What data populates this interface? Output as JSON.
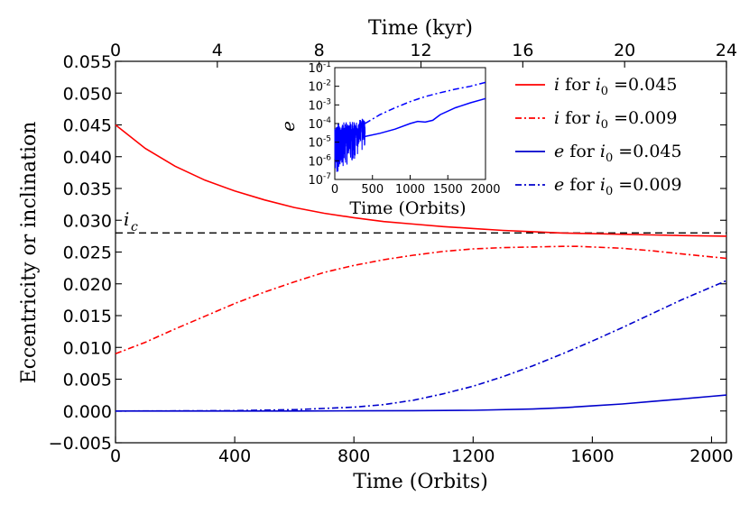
{
  "chart_data": [
    {
      "type": "line",
      "title": "",
      "xlabel": "Time (Orbits)",
      "ylabel": "Eccentricity or inclination",
      "top_axis": {
        "label": "Time (kyr)",
        "range": [
          0,
          24
        ],
        "ticks": [
          "0",
          "4",
          "8",
          "12",
          "16",
          "20",
          "24"
        ]
      },
      "xlim": [
        0,
        2050
      ],
      "ylim": [
        -0.005,
        0.055
      ],
      "xticks": [
        "0",
        "400",
        "800",
        "1200",
        "1600",
        "2000"
      ],
      "yticks": [
        "−0.005",
        "0.000",
        "0.005",
        "0.010",
        "0.015",
        "0.020",
        "0.025",
        "0.030",
        "0.035",
        "0.040",
        "0.045",
        "0.050",
        "0.055"
      ],
      "legend_position": "top-right",
      "reference_line": {
        "label": "i",
        "subscript": "c",
        "y": 0.028,
        "style": "dashed",
        "color": "#000000"
      },
      "series": [
        {
          "name": "i for i0 = 0.045",
          "legend_var": "i",
          "legend_mid": " for ",
          "legend_sub_var": "i",
          "legend_sub": "0",
          "legend_val": " =0.045",
          "color": "#ff0000",
          "style": "solid",
          "x": [
            0,
            100,
            200,
            300,
            400,
            500,
            600,
            700,
            800,
            900,
            1000,
            1100,
            1200,
            1300,
            1400,
            1500,
            1600,
            1700,
            1800,
            1900,
            2050
          ],
          "y": [
            0.045,
            0.0413,
            0.0385,
            0.0363,
            0.0346,
            0.0332,
            0.032,
            0.0311,
            0.0304,
            0.0298,
            0.0294,
            0.029,
            0.0287,
            0.0284,
            0.0282,
            0.028,
            0.0279,
            0.0278,
            0.0277,
            0.0276,
            0.0275
          ]
        },
        {
          "name": "i for i0 = 0.009",
          "legend_var": "i",
          "legend_mid": " for ",
          "legend_sub_var": "i",
          "legend_sub": "0",
          "legend_val": " =0.009",
          "color": "#ff0000",
          "style": "dashdot",
          "x": [
            0,
            100,
            200,
            300,
            400,
            500,
            600,
            700,
            800,
            900,
            1000,
            1100,
            1200,
            1300,
            1400,
            1500,
            1550,
            1600,
            1700,
            1800,
            1900,
            2050
          ],
          "y": [
            0.009,
            0.0108,
            0.0129,
            0.0149,
            0.0169,
            0.0187,
            0.0203,
            0.0218,
            0.0229,
            0.0238,
            0.0245,
            0.0251,
            0.0255,
            0.0257,
            0.0258,
            0.0259,
            0.0259,
            0.0258,
            0.0256,
            0.0252,
            0.0247,
            0.024
          ]
        },
        {
          "name": "e for i0 = 0.045",
          "legend_var": "e",
          "legend_mid": " for ",
          "legend_sub_var": "i",
          "legend_sub": "0",
          "legend_val": " =0.045",
          "color": "#0000cc",
          "style": "solid",
          "x": [
            0,
            200,
            400,
            600,
            800,
            1000,
            1200,
            1400,
            1500,
            1600,
            1700,
            1800,
            1900,
            2000,
            2050
          ],
          "y": [
            0.0,
            0.0,
            0.0,
            0.0,
            2e-05,
            5e-05,
            0.0001,
            0.0003,
            0.0005,
            0.0008,
            0.0011,
            0.0015,
            0.0019,
            0.0023,
            0.0025
          ]
        },
        {
          "name": "e for i0 = 0.009",
          "legend_var": "e",
          "legend_mid": " for ",
          "legend_sub_var": "i",
          "legend_sub": "0",
          "legend_val": " =0.009",
          "color": "#0000cc",
          "style": "dashdot",
          "x": [
            0,
            400,
            600,
            800,
            900,
            1000,
            1100,
            1200,
            1300,
            1400,
            1500,
            1600,
            1700,
            1800,
            1900,
            2000,
            2050
          ],
          "y": [
            0.0,
            5e-05,
            0.0002,
            0.0006,
            0.001,
            0.0017,
            0.0027,
            0.0039,
            0.0054,
            0.0071,
            0.009,
            0.011,
            0.0131,
            0.0153,
            0.0175,
            0.0195,
            0.0205
          ]
        }
      ]
    },
    {
      "type": "line",
      "title": "",
      "xlabel": "Time (Orbits)",
      "ylabel": "e",
      "yscale": "log",
      "xlim": [
        0,
        2000
      ],
      "ylim": [
        1e-07,
        0.1
      ],
      "xticks": [
        "0",
        "500",
        "1000",
        "1500",
        "2000"
      ],
      "ytick_exponents": [
        "-1",
        "-2",
        "-3",
        "-4",
        "-5",
        "-6",
        "-7"
      ],
      "ytick_base": "10",
      "series": [
        {
          "name": "e for i0 = 0.009 (inset)",
          "color": "#0000ff",
          "style": "dashdot",
          "x": [
            400,
            600,
            800,
            1000,
            1200,
            1400,
            1600,
            1800,
            2000
          ],
          "y": [
            0.0001,
            0.0003,
            0.0007,
            0.0015,
            0.0028,
            0.0045,
            0.007,
            0.01,
            0.016
          ]
        },
        {
          "name": "e for i0 = 0.045 (inset)",
          "color": "#0000ff",
          "style": "solid",
          "x": [
            400,
            600,
            800,
            1000,
            1100,
            1200,
            1300,
            1400,
            1600,
            1800,
            2000
          ],
          "y": [
            2e-05,
            3e-05,
            5e-05,
            0.0001,
            0.00013,
            0.00012,
            0.00015,
            0.0003,
            0.0007,
            0.0013,
            0.0022
          ]
        }
      ]
    }
  ]
}
